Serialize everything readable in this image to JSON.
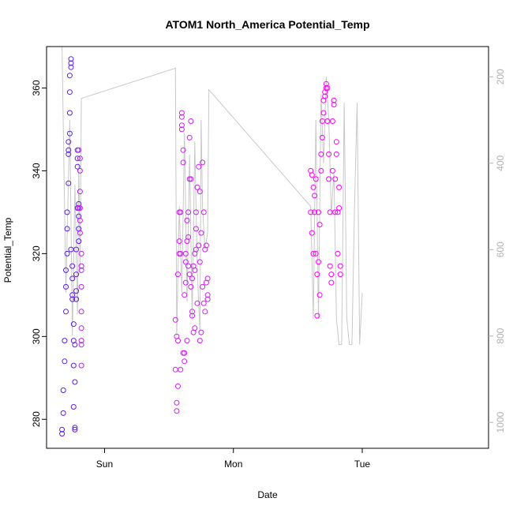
{
  "chart_data": {
    "type": "scatter",
    "title": "ATOM1 North_America Potential_Temp",
    "xlabel": "Date",
    "ylabel": "Potential_Temp",
    "ylim": [
      273,
      370
    ],
    "y_ticks": [
      280,
      300,
      320,
      340,
      360
    ],
    "x_ticks": [
      {
        "label": "Sun",
        "x": 0.0
      },
      {
        "label": "Mon",
        "x": 1.0
      },
      {
        "label": "Tue",
        "x": 2.0
      }
    ],
    "xlim": [
      -0.45,
      2.98
    ],
    "right_axis": {
      "label": "",
      "ticks": [
        200,
        400,
        600,
        800,
        1000
      ],
      "reversed": true,
      "range": [
        130,
        1060
      ],
      "color": "#b0b0b0"
    },
    "legend": "none",
    "grid": false,
    "color_gradient": [
      "#5a1fe6",
      "#ff00ff"
    ],
    "pressure_line": {
      "color": "#c8c8c8",
      "points": [
        [
          -0.33,
          130
        ],
        [
          -0.3,
          700
        ],
        [
          -0.27,
          300
        ],
        [
          -0.25,
          800
        ],
        [
          -0.23,
          450
        ],
        [
          -0.21,
          750
        ],
        [
          -0.2,
          400
        ],
        [
          -0.19,
          650
        ],
        [
          -0.18,
          250
        ],
        [
          0.55,
          180
        ],
        [
          0.56,
          800
        ],
        [
          0.58,
          500
        ],
        [
          0.6,
          700
        ],
        [
          0.62,
          330
        ],
        [
          0.64,
          720
        ],
        [
          0.66,
          380
        ],
        [
          0.68,
          760
        ],
        [
          0.7,
          350
        ],
        [
          0.72,
          650
        ],
        [
          0.74,
          790
        ],
        [
          0.75,
          300
        ],
        [
          0.76,
          500
        ],
        [
          0.78,
          600
        ],
        [
          0.8,
          560
        ],
        [
          0.81,
          230
        ],
        [
          1.6,
          500
        ],
        [
          1.62,
          760
        ],
        [
          1.64,
          300
        ],
        [
          1.66,
          760
        ],
        [
          1.68,
          240
        ],
        [
          1.7,
          400
        ],
        [
          1.72,
          200
        ],
        [
          1.74,
          300
        ],
        [
          1.76,
          520
        ],
        [
          1.78,
          420
        ],
        [
          1.8,
          760
        ],
        [
          1.82,
          820
        ],
        [
          1.84,
          820
        ],
        [
          1.86,
          260
        ],
        [
          1.88,
          760
        ],
        [
          1.9,
          820
        ],
        [
          1.92,
          820
        ],
        [
          1.94,
          500
        ],
        [
          1.96,
          260
        ],
        [
          1.98,
          820
        ],
        [
          2.0,
          700
        ]
      ]
    },
    "series": [
      {
        "color": "#5a1fe6",
        "x": [
          -0.33,
          -0.33,
          -0.32,
          -0.32,
          -0.31,
          -0.31,
          -0.3,
          -0.3,
          -0.3,
          -0.29,
          -0.29,
          -0.29,
          -0.28,
          -0.28,
          -0.28,
          -0.28,
          -0.27,
          -0.27,
          -0.27,
          -0.27,
          -0.26,
          -0.26,
          -0.26,
          -0.26,
          -0.25,
          -0.25,
          -0.25,
          -0.25,
          -0.24,
          -0.24,
          -0.24,
          -0.24,
          -0.23,
          -0.23,
          -0.23,
          -0.23,
          -0.22,
          -0.22,
          -0.22,
          -0.22,
          -0.21,
          -0.21,
          -0.21,
          -0.21,
          -0.2,
          -0.2,
          -0.2,
          -0.2
        ],
        "y": [
          276.5,
          277.5,
          281.5,
          287,
          294,
          299,
          306,
          312,
          316,
          320,
          326,
          330,
          337,
          344,
          345,
          347,
          349,
          354,
          359,
          363,
          365,
          366,
          367,
          321,
          317,
          314,
          310,
          309,
          303,
          299,
          293,
          283,
          278,
          277.5,
          289,
          298,
          309,
          311,
          315,
          321,
          341,
          343,
          345,
          331,
          332,
          329,
          326,
          323
        ]
      },
      {
        "color": "#b424e8",
        "x": [
          -0.2,
          -0.2,
          -0.19,
          -0.19,
          -0.19,
          -0.19,
          -0.19,
          -0.19,
          -0.18,
          -0.18,
          -0.18,
          -0.18,
          -0.18,
          -0.18,
          -0.18,
          -0.18,
          -0.18
        ],
        "y": [
          331,
          345,
          343,
          340,
          335,
          331,
          328,
          325,
          320,
          316,
          312,
          306,
          302,
          299,
          298,
          293,
          317
        ]
      },
      {
        "color": "#cc20f0",
        "x": [
          0.55,
          0.55,
          0.56,
          0.56,
          0.56,
          0.57,
          0.57,
          0.57,
          0.58,
          0.58,
          0.58,
          0.59,
          0.59,
          0.59,
          0.6,
          0.6,
          0.6,
          0.6,
          0.61,
          0.61,
          0.61,
          0.62,
          0.62,
          0.62,
          0.63,
          0.63,
          0.63,
          0.64,
          0.64,
          0.64,
          0.65,
          0.65,
          0.65,
          0.66,
          0.66,
          0.66,
          0.67,
          0.67,
          0.67,
          0.68,
          0.68,
          0.68,
          0.69,
          0.69,
          0.7,
          0.7,
          0.7,
          0.71,
          0.71,
          0.71,
          0.72,
          0.72,
          0.73,
          0.73,
          0.74,
          0.74,
          0.74,
          0.75,
          0.75,
          0.76,
          0.76,
          0.77,
          0.77,
          0.78,
          0.78,
          0.79,
          0.79,
          0.8,
          0.8,
          0.8
        ],
        "y": [
          292,
          304,
          282,
          284,
          300,
          288,
          299,
          315,
          323,
          320,
          330,
          292,
          330,
          320,
          351,
          353,
          354,
          350,
          342,
          345,
          296,
          294,
          296,
          310,
          313,
          318,
          320,
          323,
          328,
          299,
          330,
          324,
          317,
          315,
          338,
          348,
          352,
          338,
          312,
          305,
          306,
          314,
          317,
          301,
          316,
          320,
          302,
          330,
          321,
          326,
          308,
          336,
          341,
          322,
          299,
          318,
          335,
          301,
          325,
          312,
          342,
          308,
          330,
          306,
          321,
          313,
          322,
          314,
          310,
          309
        ]
      },
      {
        "color": "#ff00ff",
        "x": [
          1.6,
          1.6,
          1.61,
          1.61,
          1.62,
          1.62,
          1.63,
          1.63,
          1.64,
          1.64,
          1.65,
          1.65,
          1.66,
          1.66,
          1.67,
          1.67,
          1.68,
          1.68,
          1.69,
          1.69,
          1.7,
          1.7,
          1.71,
          1.71,
          1.72,
          1.72,
          1.73,
          1.73,
          1.74,
          1.74,
          1.75,
          1.75,
          1.76,
          1.76,
          1.77,
          1.77,
          1.78,
          1.78,
          1.79,
          1.79,
          1.8,
          1.8,
          1.81,
          1.81,
          1.82,
          1.82,
          1.83,
          1.83
        ],
        "y": [
          330,
          340,
          325,
          339,
          320,
          336,
          330,
          334,
          320,
          338,
          305,
          315,
          318,
          330,
          310,
          327,
          340,
          344,
          348,
          352,
          354,
          357,
          358,
          359,
          360,
          361,
          360,
          352,
          344,
          338,
          330,
          317,
          313,
          315,
          340,
          352,
          356,
          357,
          330,
          338,
          347,
          344,
          320,
          330,
          336,
          331,
          317,
          315
        ]
      }
    ]
  }
}
